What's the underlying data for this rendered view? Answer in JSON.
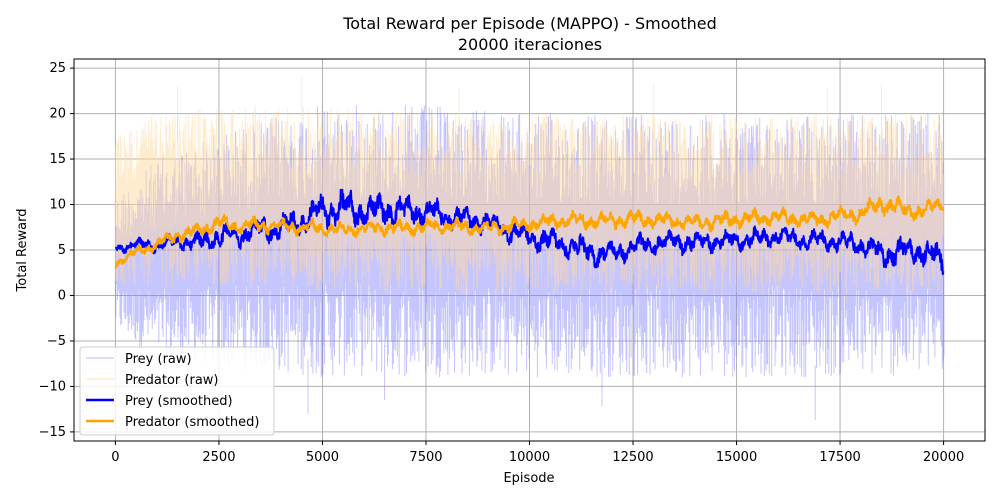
{
  "chart_data": {
    "type": "line",
    "title": "Total Reward per Episode (MAPPO) - Smoothed",
    "subtitle": "20000 iteraciones",
    "xlabel": "Episode",
    "ylabel": "Total Reward",
    "xlim": [
      -1000,
      21000
    ],
    "ylim": [
      -16,
      26
    ],
    "x_ticks": [
      0,
      2500,
      5000,
      7500,
      10000,
      12500,
      15000,
      17500,
      20000
    ],
    "y_ticks": [
      -15,
      -10,
      -5,
      0,
      5,
      10,
      15,
      20,
      25
    ],
    "grid": true,
    "legend_position": "lower-left",
    "colors": {
      "prey_raw": "#8080ff",
      "predator_raw": "#ffd9a0",
      "prey_smoothed": "#0000ff",
      "predator_smoothed": "#ffa500",
      "grid": "#b0b0b0"
    },
    "legend": [
      {
        "label": "Prey (raw)",
        "series": "prey_raw"
      },
      {
        "label": "Predator (raw)",
        "series": "predator_raw"
      },
      {
        "label": "Prey (smoothed)",
        "series": "prey_smoothed"
      },
      {
        "label": "Predator (smoothed)",
        "series": "predator_smoothed"
      }
    ],
    "raw_x": [
      0,
      1000,
      2500,
      5000,
      7500,
      10000,
      12500,
      15000,
      17500,
      20000
    ],
    "prey_raw_upper": [
      11,
      15,
      18,
      21,
      21,
      20,
      20,
      20,
      20,
      20
    ],
    "prey_raw_lower": [
      -4,
      -7,
      -8,
      -9,
      -9,
      -9,
      -9,
      -9,
      -9,
      -9
    ],
    "predator_raw_upper": [
      18,
      20,
      21,
      21,
      20,
      20,
      20,
      20,
      20,
      20
    ],
    "predator_raw_lower": [
      1,
      1,
      1,
      0,
      0,
      0,
      0,
      0,
      0,
      0
    ],
    "prey_raw_spikes": [
      [
        4650,
        -13
      ],
      [
        6500,
        -11.5
      ],
      [
        11750,
        -12.2
      ],
      [
        16900,
        -13.7
      ]
    ],
    "predator_raw_spikes": [
      [
        1500,
        23
      ],
      [
        4500,
        24
      ],
      [
        8300,
        22.8
      ],
      [
        13000,
        23.2
      ],
      [
        17200,
        22.8
      ],
      [
        18500,
        23.2
      ]
    ],
    "prey_smoothed": {
      "x": [
        0,
        500,
        1000,
        1500,
        2000,
        2500,
        3000,
        3500,
        4000,
        4500,
        5000,
        5500,
        6000,
        6500,
        7000,
        7500,
        8000,
        8500,
        9000,
        9500,
        10000,
        10500,
        11000,
        11500,
        12000,
        12500,
        13000,
        13500,
        14000,
        14500,
        15000,
        15500,
        16000,
        16500,
        17000,
        17500,
        18000,
        18500,
        19000,
        19500,
        20000
      ],
      "y": [
        5.2,
        5.6,
        5.5,
        6.0,
        5.8,
        6.5,
        6.8,
        7.3,
        7.4,
        8.2,
        9.3,
        9.6,
        9.2,
        9.5,
        9.3,
        9.2,
        8.8,
        8.3,
        8.0,
        7.2,
        6.4,
        6.0,
        5.5,
        4.7,
        4.6,
        5.3,
        5.8,
        5.9,
        5.8,
        6.0,
        6.1,
        6.3,
        6.5,
        6.2,
        6.0,
        5.8,
        5.6,
        4.4,
        5.0,
        4.9,
        3.9
      ],
      "amp": [
        0.6,
        0.7,
        0.8,
        1.0,
        1.2,
        1.4,
        1.5,
        1.6,
        1.6,
        1.8,
        2.0,
        2.2,
        2.0,
        1.8,
        1.8,
        1.6,
        1.5,
        1.4,
        1.3,
        1.4,
        1.4,
        1.5,
        1.5,
        1.6,
        1.4,
        1.3,
        1.3,
        1.3,
        1.3,
        1.2,
        1.2,
        1.2,
        1.2,
        1.2,
        1.3,
        1.3,
        1.4,
        1.8,
        1.6,
        1.6,
        1.8
      ]
    },
    "predator_smoothed": {
      "x": [
        0,
        500,
        1000,
        1500,
        2000,
        2500,
        3000,
        3500,
        4000,
        4500,
        5000,
        5500,
        6000,
        6500,
        7000,
        7500,
        8000,
        8500,
        9000,
        9500,
        10000,
        10500,
        11000,
        11500,
        12000,
        12500,
        13000,
        13500,
        14000,
        14500,
        15000,
        15500,
        16000,
        16500,
        17000,
        17500,
        18000,
        18500,
        19000,
        19500,
        20000
      ],
      "y": [
        3.5,
        4.8,
        5.6,
        6.6,
        7.1,
        8.0,
        7.6,
        7.7,
        7.6,
        7.5,
        7.4,
        7.3,
        7.4,
        7.5,
        7.4,
        7.6,
        7.7,
        7.5,
        7.4,
        7.6,
        7.9,
        8.1,
        8.3,
        8.2,
        8.3,
        8.4,
        8.3,
        8.2,
        8.0,
        8.1,
        8.4,
        8.5,
        8.6,
        8.4,
        8.3,
        8.8,
        9.0,
        10.2,
        9.5,
        9.2,
        10.3
      ],
      "amp": [
        0.5,
        0.6,
        0.7,
        0.8,
        0.9,
        0.9,
        0.9,
        0.9,
        0.9,
        0.9,
        0.9,
        0.9,
        0.9,
        0.9,
        0.9,
        0.9,
        0.9,
        0.9,
        0.9,
        0.9,
        0.9,
        0.9,
        1.0,
        1.0,
        1.0,
        1.0,
        1.0,
        1.0,
        1.0,
        1.0,
        1.0,
        1.0,
        1.0,
        1.0,
        1.0,
        1.0,
        1.0,
        1.2,
        1.1,
        1.0,
        1.0
      ]
    }
  }
}
